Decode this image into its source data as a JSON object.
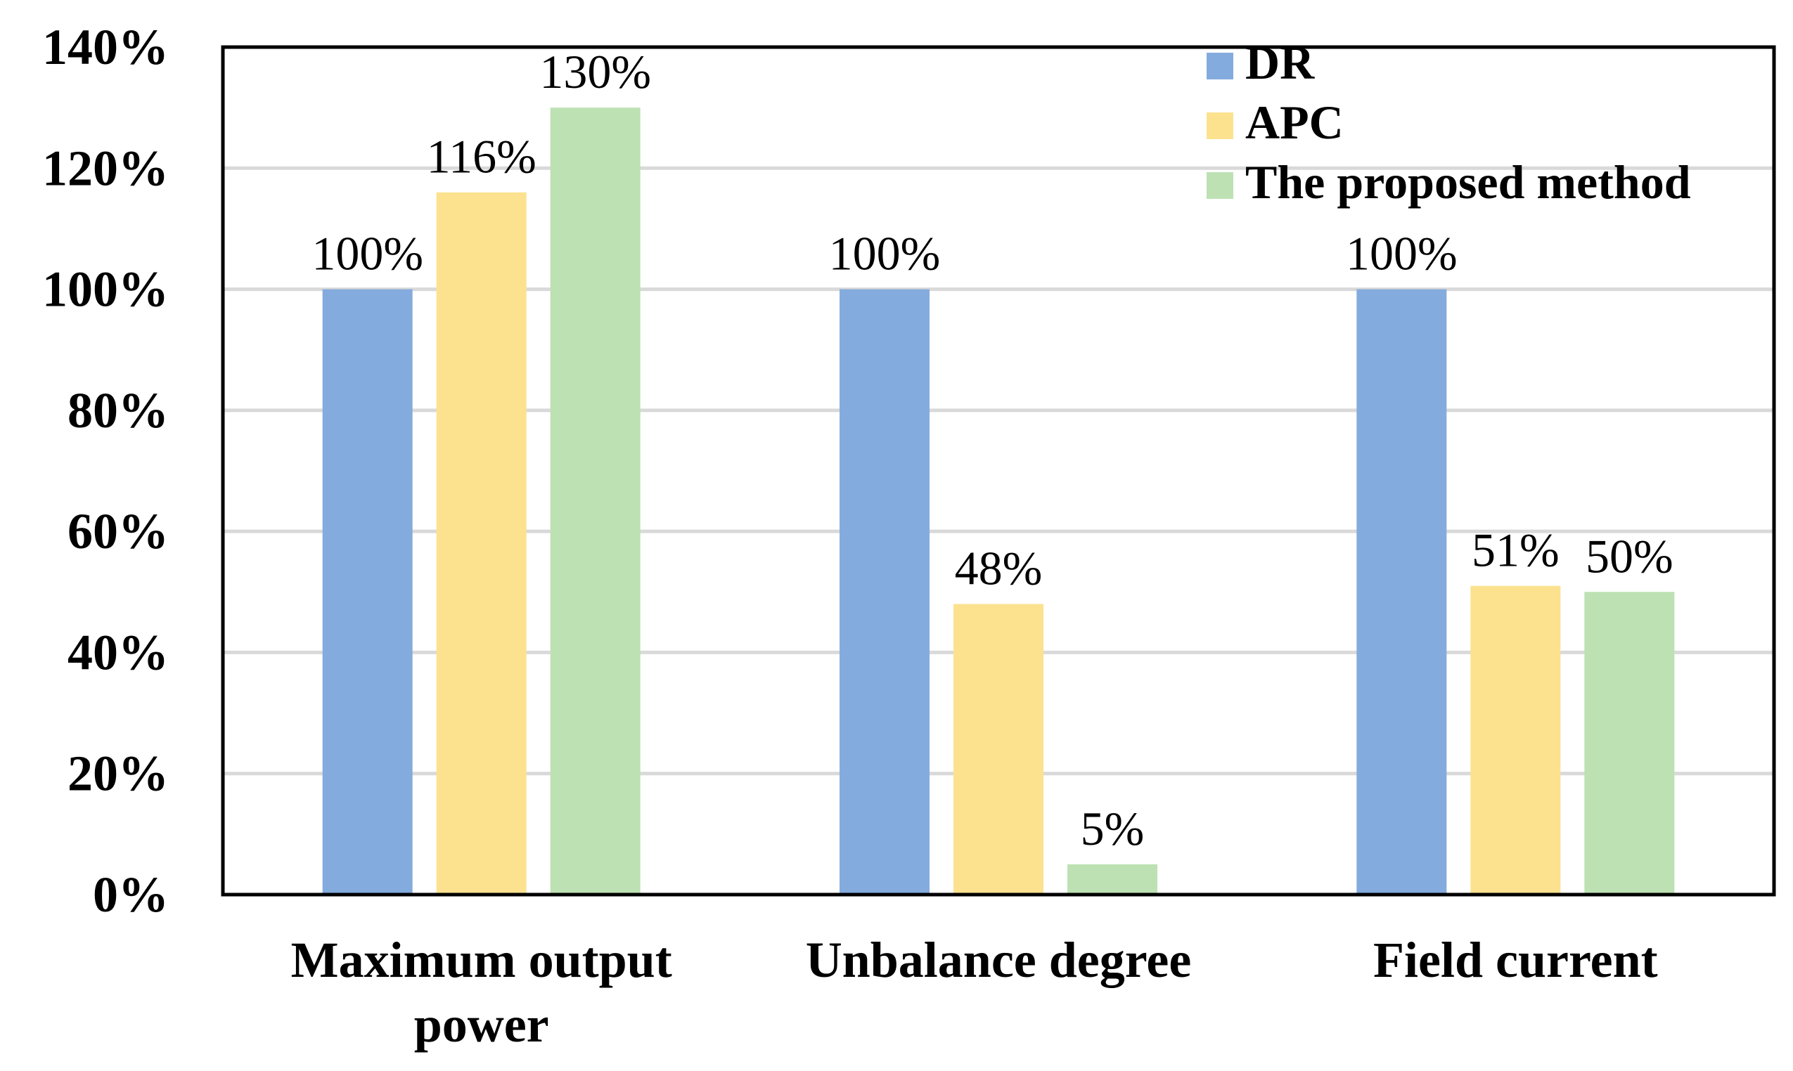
{
  "chart_data": {
    "type": "bar",
    "title": "",
    "xlabel": "",
    "ylabel": "",
    "categories": [
      [
        "Maximum output",
        "power"
      ],
      [
        "Unbalance degree"
      ],
      [
        "Field current"
      ]
    ],
    "series": [
      {
        "name": "DR",
        "color": "#84ABDD",
        "values": [
          100,
          100,
          100
        ],
        "labels": [
          "100%",
          "100%",
          "100%"
        ]
      },
      {
        "name": "APC",
        "color": "#FCE28F",
        "values": [
          116,
          48,
          51
        ],
        "labels": [
          "116%",
          "48%",
          "51%"
        ]
      },
      {
        "name": "The proposed method",
        "color": "#BDE1B3",
        "values": [
          130,
          5,
          50
        ],
        "labels": [
          "130%",
          "5%",
          "50%"
        ]
      }
    ],
    "ylim": [
      0,
      140
    ],
    "yticks": [
      0,
      20,
      40,
      60,
      80,
      100,
      120,
      140
    ],
    "ytick_labels": [
      "0%",
      "20%",
      "40%",
      "60%",
      "80%",
      "100%",
      "120%",
      "140%"
    ],
    "grid": true,
    "legend_position": "top-right"
  }
}
